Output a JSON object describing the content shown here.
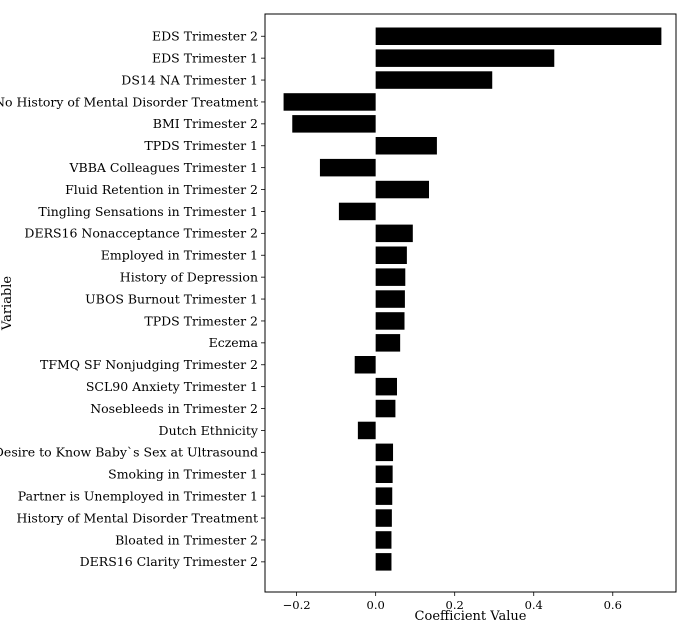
{
  "chart_data": {
    "type": "bar",
    "orientation": "horizontal",
    "title": "",
    "xlabel": "Coefficient Value",
    "ylabel": "Variable",
    "xlim": [
      -0.28,
      0.76
    ],
    "xticks": [
      -0.2,
      0.0,
      0.2,
      0.4,
      0.6
    ],
    "xtick_labels": [
      "−0.2",
      "0.0",
      "0.2",
      "0.4",
      "0.6"
    ],
    "grid": false,
    "legend": "none",
    "bar_color": "#000000",
    "categories": [
      "EDS Trimester 2",
      "EDS Trimester 1",
      "DS14 NA Trimester 1",
      "No History of Mental Disorder Treatment",
      "BMI Trimester 2",
      "TPDS Trimester 1",
      "VBBA Colleagues Trimester 1",
      "Fluid Retention in Trimester 2",
      "Tingling Sensations in Trimester 1",
      "DERS16 Nonacceptance Trimester 2",
      "Employed in Trimester 1",
      "History of Depression",
      "UBOS Burnout Trimester 1",
      "TPDS Trimester 2",
      "Eczema",
      "TFMQ SF Nonjudging Trimester 2",
      "SCL90 Anxiety Trimester 1",
      "Nosebleeds in Trimester 2",
      "Dutch Ethnicity",
      "Desire to Know Baby`s Sex at Ultrasound",
      "Smoking in Trimester 1",
      "Partner is Unemployed in Trimester 1",
      "History of Mental Disorder Treatment",
      "Bloated in Trimester 2",
      "DERS16 Clarity Trimester 2"
    ],
    "values": [
      0.723,
      0.452,
      0.295,
      -0.233,
      -0.211,
      0.155,
      -0.141,
      0.135,
      -0.093,
      0.094,
      0.079,
      0.075,
      0.074,
      0.073,
      0.062,
      -0.053,
      0.054,
      0.05,
      -0.045,
      0.044,
      0.043,
      0.042,
      0.041,
      0.04,
      0.04
    ]
  }
}
